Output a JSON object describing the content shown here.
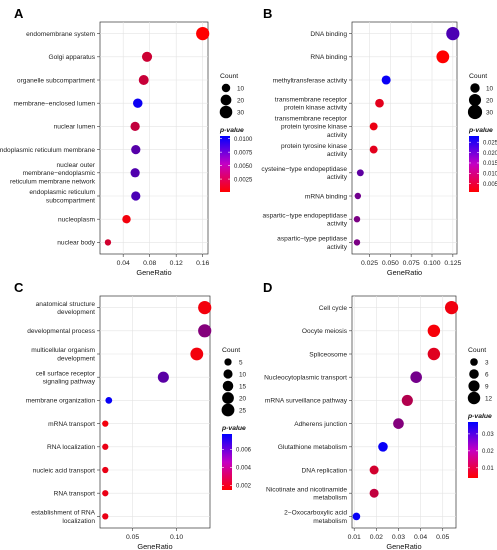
{
  "chart_data": [
    {
      "panel_label": "A",
      "type": "scatter",
      "xlabel": "GeneRatio",
      "x_ticks": [
        "0.04",
        "0.08",
        "0.12",
        "0.16"
      ],
      "x_tick_values": [
        0.04,
        0.08,
        0.12,
        0.16
      ],
      "xlim": [
        0.005,
        0.168
      ],
      "categories": [
        "endomembrane system",
        "Golgi apparatus",
        "organelle subcompartment",
        "membrane−enclosed lumen",
        "nuclear lumen",
        "endoplasmic reticulum membrane",
        "nuclear outer membrane−endoplasmic reticulum membrane network",
        "endoplasmic reticulum subcompartment",
        "nucleoplasm",
        "nuclear body"
      ],
      "category_lines": [
        [
          "endomembrane system"
        ],
        [
          "Golgi apparatus"
        ],
        [
          "organelle subcompartment"
        ],
        [
          "membrane−enclosed lumen"
        ],
        [
          "nuclear lumen"
        ],
        [
          "endoplasmic reticulum membrane"
        ],
        [
          "nuclear outer",
          "membrane−endoplasmic",
          "reticulum membrane network"
        ],
        [
          "endoplasmic reticulum",
          "subcompartment"
        ],
        [
          "nucleoplasm"
        ],
        [
          "nuclear body"
        ]
      ],
      "gene_ratio": [
        0.16,
        0.076,
        0.071,
        0.062,
        0.058,
        0.059,
        0.058,
        0.059,
        0.045,
        0.017
      ],
      "count": [
        34,
        17,
        16,
        14,
        13,
        13,
        13,
        13,
        10,
        4
      ],
      "p_value": [
        0.0001,
        0.0022,
        0.0024,
        0.01,
        0.0026,
        0.007,
        0.0072,
        0.0075,
        0.0006,
        0.002
      ],
      "size_legend": {
        "title": "Count",
        "values": [
          10,
          20,
          30
        ]
      },
      "color_legend": {
        "title": "p-value",
        "ticks": [
          "0.0100",
          "0.0075",
          "0.0050",
          "0.0025"
        ],
        "tick_values": [
          0.01,
          0.0075,
          0.005,
          0.0025
        ],
        "range": [
          0.0001,
          0.0105
        ],
        "low_color": "#ff0000",
        "high_color": "#0000ff"
      }
    },
    {
      "panel_label": "B",
      "type": "scatter",
      "xlabel": "GeneRatio",
      "x_ticks": [
        "0.025",
        "0.050",
        "0.075",
        "0.100",
        "0.125"
      ],
      "x_tick_values": [
        0.025,
        0.05,
        0.075,
        0.1,
        0.125
      ],
      "xlim": [
        0.004,
        0.13
      ],
      "categories": [
        "DNA binding",
        "RNA binding",
        "methyltransferase activity",
        "transmembrane receptor protein kinase activity",
        "transmembrane receptor protein tyrosine kinase activity",
        "protein tyrosine kinase activity",
        "cysteine−type endopeptidase activity",
        "mRNA binding",
        "aspartic−type endopeptidase activity",
        "aspartic−type peptidase activity"
      ],
      "category_lines": [
        [
          "DNA binding"
        ],
        [
          "RNA binding"
        ],
        [
          "methyltransferase activity"
        ],
        [
          "transmembrane receptor",
          "protein kinase activity"
        ],
        [
          "transmembrane receptor",
          "protein tyrosine kinase",
          "activity"
        ],
        [
          "protein tyrosine kinase",
          "activity"
        ],
        [
          "cysteine−type endopeptidase",
          "activity"
        ],
        [
          "mRNA binding"
        ],
        [
          "aspartic−type endopeptidase",
          "activity"
        ],
        [
          "aspartic−type peptidase",
          "activity"
        ]
      ],
      "gene_ratio": [
        0.125,
        0.113,
        0.045,
        0.037,
        0.03,
        0.03,
        0.014,
        0.011,
        0.01,
        0.01
      ],
      "count": [
        25,
        23,
        9,
        8,
        6,
        6,
        4,
        3,
        3,
        3
      ],
      "p_value": [
        0.02,
        0.001,
        0.027,
        0.004,
        0.003,
        0.004,
        0.018,
        0.016,
        0.015,
        0.015
      ],
      "size_legend": {
        "title": "Count",
        "values": [
          10,
          20,
          30
        ]
      },
      "color_legend": {
        "title": "p-value",
        "ticks": [
          "0.025",
          "0.020",
          "0.015",
          "0.010",
          "0.005"
        ],
        "tick_values": [
          0.025,
          0.02,
          0.015,
          0.01,
          0.005
        ],
        "range": [
          0.001,
          0.028
        ],
        "low_color": "#ff0000",
        "high_color": "#0000ff"
      }
    },
    {
      "panel_label": "C",
      "type": "scatter",
      "xlabel": "GeneRatio",
      "x_ticks": [
        "0.05",
        "0.10"
      ],
      "x_tick_values": [
        0.05,
        0.1
      ],
      "xlim": [
        0.013,
        0.138
      ],
      "categories": [
        "anatomical structure development",
        "developmental process",
        "multicellular organism development",
        "cell surface receptor signaling pathway",
        "membrane organization",
        "mRNA transport",
        "RNA localization",
        "nucleic acid transport",
        "RNA transport",
        "establishment of RNA localization"
      ],
      "category_lines": [
        [
          "anatomical structure",
          "development"
        ],
        [
          "developmental process"
        ],
        [
          "multicellular organism",
          "development"
        ],
        [
          "cell surface receptor",
          "signaling pathway"
        ],
        [
          "membrane organization"
        ],
        [
          "mRNA transport"
        ],
        [
          "RNA localization"
        ],
        [
          "nucleic acid transport"
        ],
        [
          "RNA transport"
        ],
        [
          "establishment of RNA",
          "localization"
        ]
      ],
      "gene_ratio": [
        0.132,
        0.132,
        0.123,
        0.085,
        0.023,
        0.019,
        0.019,
        0.019,
        0.019,
        0.019
      ],
      "count": [
        27,
        27,
        25,
        17,
        4,
        3,
        3,
        3,
        3,
        3
      ],
      "p_value": [
        0.0018,
        0.0045,
        0.0018,
        0.0055,
        0.0075,
        0.0018,
        0.002,
        0.002,
        0.002,
        0.002
      ],
      "size_legend": {
        "title": "Count",
        "values": [
          5,
          10,
          15,
          20,
          25
        ]
      },
      "color_legend": {
        "title": "p-value",
        "ticks": [
          "0.006",
          "0.004",
          "0.002"
        ],
        "tick_values": [
          0.006,
          0.004,
          0.002
        ],
        "range": [
          0.0015,
          0.0077
        ],
        "low_color": "#ff0000",
        "high_color": "#0000ff"
      }
    },
    {
      "panel_label": "D",
      "type": "scatter",
      "xlabel": "GeneRatio",
      "x_ticks": [
        "0.01",
        "0.02",
        "0.03",
        "0.04",
        "0.05"
      ],
      "x_tick_values": [
        0.01,
        0.02,
        0.03,
        0.04,
        0.05
      ],
      "xlim": [
        0.009,
        0.056
      ],
      "categories": [
        "Cell cycle",
        "Oocyte meiosis",
        "Spliceosome",
        "Nucleocytoplasmic transport",
        "mRNA surveillance pathway",
        "Adherens junction",
        "Glutathione metabolism",
        "DNA replication",
        "Nicotinate and nicotinamide metabolism",
        "2−Oxocarboxylic acid metabolism"
      ],
      "category_lines": [
        [
          "Cell cycle"
        ],
        [
          "Oocyte meiosis"
        ],
        [
          "Spliceosome"
        ],
        [
          "Nucleocytoplasmic transport"
        ],
        [
          "mRNA surveillance pathway"
        ],
        [
          "Adherens junction"
        ],
        [
          "Glutathione metabolism"
        ],
        [
          "DNA replication"
        ],
        [
          "Nicotinate and nicotinamide",
          "metabolism"
        ],
        [
          "2−Oxocarboxylic acid",
          "metabolism"
        ]
      ],
      "gene_ratio": [
        0.054,
        0.046,
        0.046,
        0.038,
        0.034,
        0.03,
        0.023,
        0.019,
        0.019,
        0.011
      ],
      "count": [
        14,
        12,
        12,
        10,
        9,
        8,
        6,
        5,
        5,
        3
      ],
      "p_value": [
        0.006,
        0.005,
        0.008,
        0.022,
        0.014,
        0.02,
        0.036,
        0.01,
        0.012,
        0.036
      ],
      "size_legend": {
        "title": "Count",
        "values": [
          3,
          6,
          9,
          12
        ]
      },
      "color_legend": {
        "title": "p-value",
        "ticks": [
          "0.03",
          "0.02",
          "0.01"
        ],
        "tick_values": [
          0.03,
          0.02,
          0.01
        ],
        "range": [
          0.004,
          0.037
        ],
        "low_color": "#ff0000",
        "high_color": "#0000ff"
      }
    }
  ]
}
